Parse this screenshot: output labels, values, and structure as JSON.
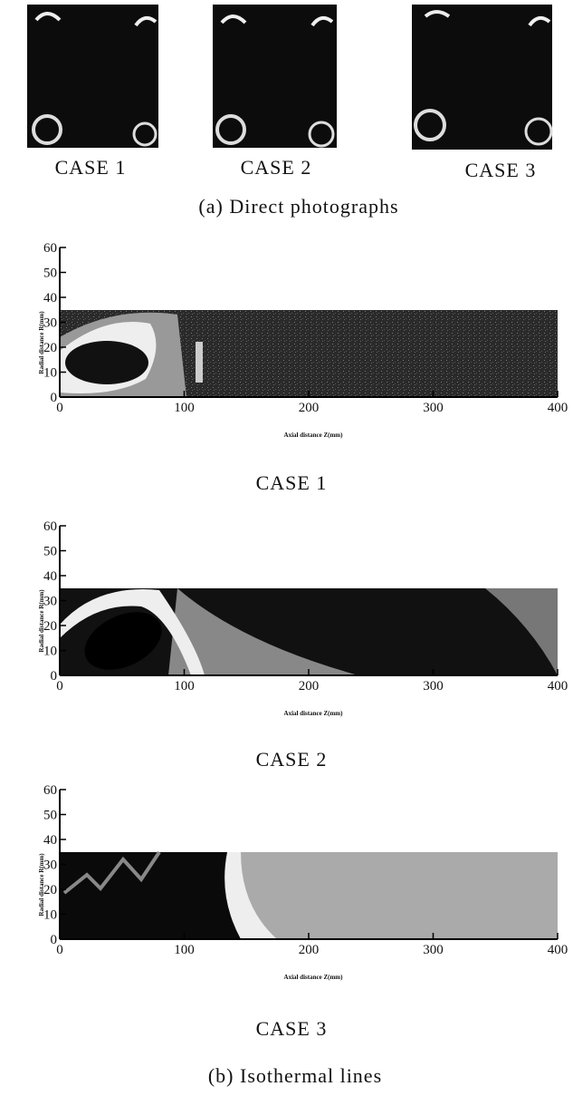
{
  "photos": {
    "labels": [
      "CASE 1",
      "CASE 2",
      "CASE 3"
    ],
    "caption": "(a) Direct photographs"
  },
  "plots": [
    {
      "case": "CASE 1",
      "xlabel": "Axial distance Z(mm)",
      "ylabel": "Radial distance R(mm)",
      "xticks": [
        0,
        100,
        200,
        300,
        400
      ],
      "yticks": [
        0,
        10,
        20,
        30,
        40,
        50,
        60
      ]
    },
    {
      "case": "CASE 2",
      "xlabel": "Axial distance Z(mm)",
      "ylabel": "Radial distance R(mm)",
      "xticks": [
        0,
        100,
        200,
        300,
        400
      ],
      "yticks": [
        0,
        10,
        20,
        30,
        40,
        50,
        60
      ]
    },
    {
      "case": "CASE 3",
      "xlabel": "Axial distance Z(mm)",
      "ylabel": "Radial distance R(mm)",
      "xticks": [
        0,
        100,
        200,
        300,
        400
      ],
      "yticks": [
        0,
        10,
        20,
        30,
        40,
        50,
        60
      ]
    }
  ],
  "caption": "(b) Isothermal lines"
}
